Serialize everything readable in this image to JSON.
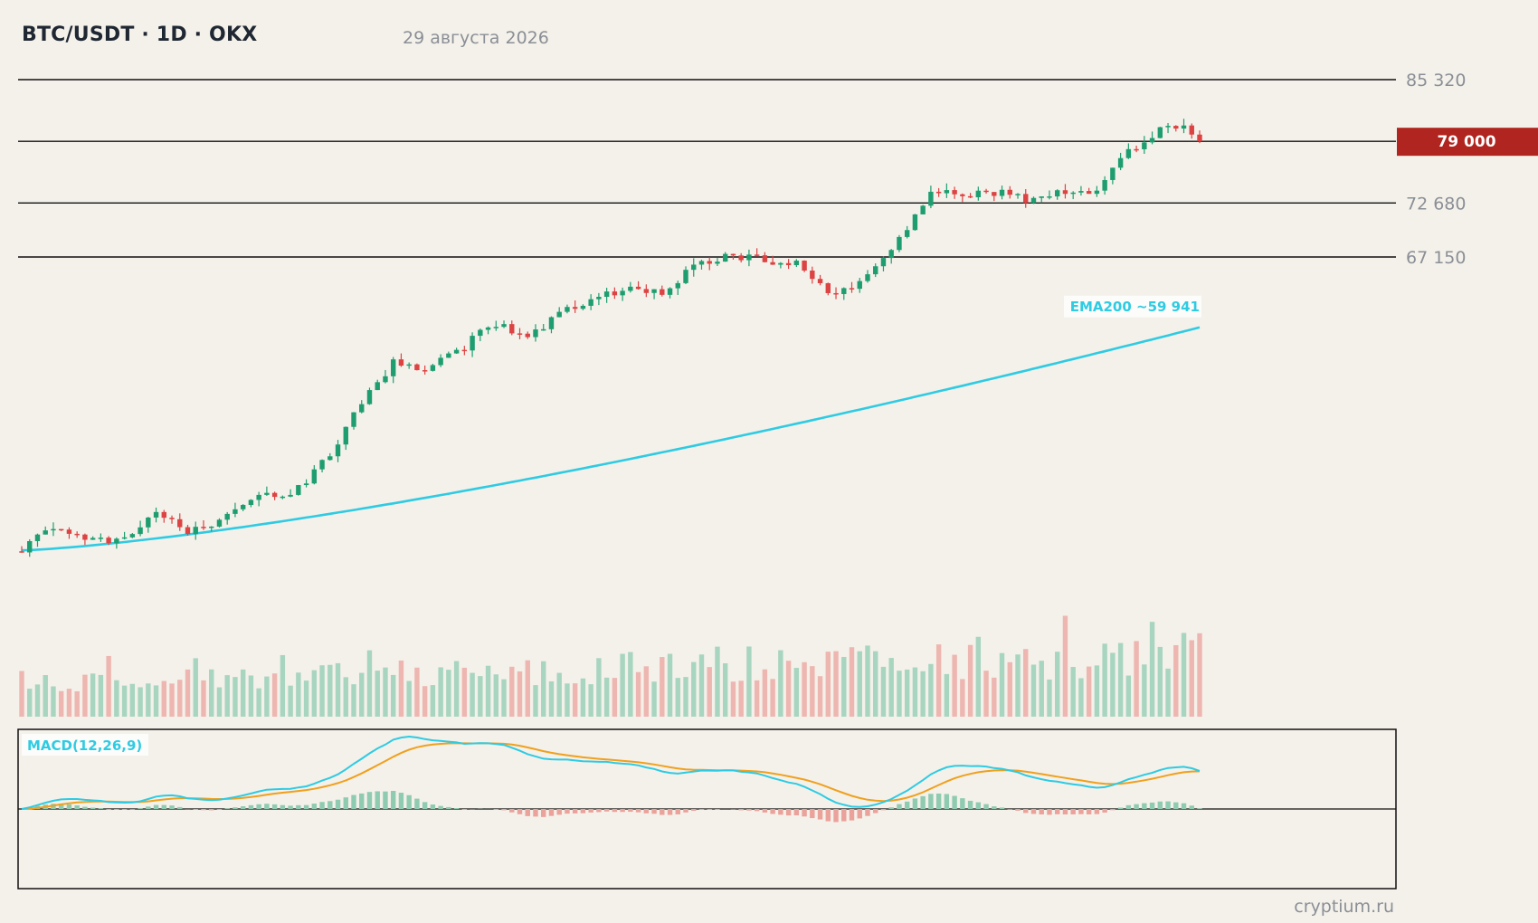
{
  "header": {
    "title": "BTC/USDT · 1D · OKX",
    "date": "29 августа 2026"
  },
  "footer": {
    "watermark": "cryptium.ru"
  },
  "colors": {
    "up": "#1e9e70",
    "down": "#dc4343",
    "up_volume": "#a8d5c0",
    "down_volume": "#eeb6b0",
    "ema": "#2ecbe3",
    "macd_line": "#2ecbe3",
    "signal_line": "#f0a01e",
    "price_tag": "#b0251f",
    "level_line": "#111111"
  },
  "chart_data": {
    "type": "candlestick",
    "symbol": "BTC/USDT",
    "timeframe": "1D",
    "exchange": "OKX",
    "ylim": [
      34000,
      88000
    ],
    "levels": [
      {
        "value": 85320,
        "label": "85 320"
      },
      {
        "value": 79000,
        "label": "79 000",
        "current": true
      },
      {
        "value": 72680,
        "label": "72 680"
      },
      {
        "value": 67150,
        "label": "67 150"
      }
    ],
    "current_price_label": "79 000",
    "ema": {
      "label": "EMA200 ~59 941",
      "start": 37100,
      "end": 59941
    },
    "path_anchors": [
      [
        0,
        37000
      ],
      [
        4,
        39800
      ],
      [
        8,
        38300
      ],
      [
        12,
        38000
      ],
      [
        16,
        40700
      ],
      [
        20,
        39000
      ],
      [
        24,
        40500
      ],
      [
        28,
        43200
      ],
      [
        32,
        42800
      ],
      [
        36,
        46300
      ],
      [
        40,
        51500
      ],
      [
        44,
        56300
      ],
      [
        48,
        55900
      ],
      [
        52,
        57500
      ],
      [
        56,
        60600
      ],
      [
        60,
        58600
      ],
      [
        64,
        61300
      ],
      [
        68,
        62800
      ],
      [
        72,
        64200
      ],
      [
        76,
        63600
      ],
      [
        80,
        66200
      ],
      [
        84,
        67300
      ],
      [
        88,
        66900
      ],
      [
        92,
        66600
      ],
      [
        96,
        63200
      ],
      [
        100,
        64800
      ],
      [
        104,
        68600
      ],
      [
        108,
        73900
      ],
      [
        112,
        73400
      ],
      [
        116,
        73700
      ],
      [
        120,
        72900
      ],
      [
        124,
        74000
      ],
      [
        128,
        74100
      ],
      [
        132,
        78300
      ],
      [
        136,
        80800
      ],
      [
        138,
        80500
      ],
      [
        140,
        79000
      ]
    ],
    "candle_count": 150,
    "macd": {
      "label": "MACD(12,26,9)",
      "fast": 12,
      "slow": 26,
      "signal": 9
    }
  }
}
